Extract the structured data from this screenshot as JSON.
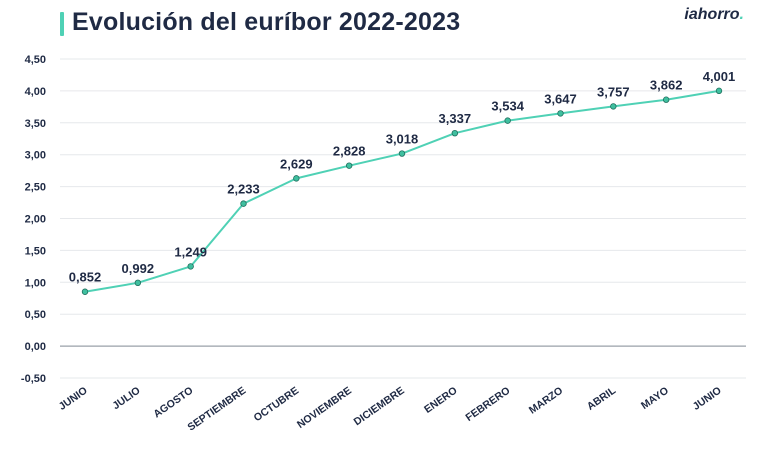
{
  "brand": {
    "name": "iahorro",
    "dot": "."
  },
  "chart_data": {
    "type": "line",
    "title": "Evolución del euríbor 2022-2023",
    "xlabel": "",
    "ylabel": "",
    "categories": [
      "JUNIO",
      "JULIO",
      "AGOSTO",
      "SEPTIEMBRE",
      "OCTUBRE",
      "NOVIEMBRE",
      "DICIEMBRE",
      "ENERO",
      "FEBRERO",
      "MARZO",
      "ABRIL",
      "MAYO",
      "JUNIO"
    ],
    "values": [
      0.852,
      0.992,
      1.249,
      2.233,
      2.629,
      2.828,
      3.018,
      3.337,
      3.534,
      3.647,
      3.757,
      3.862,
      4.001
    ],
    "data_labels": [
      "0,852",
      "0,992",
      "1,249",
      "2,233",
      "2,629",
      "2,828",
      "3,018",
      "3,337",
      "3,534",
      "3,647",
      "3,757",
      "3,862",
      "4,001"
    ],
    "yticks": [
      4.5,
      4.0,
      3.5,
      3.0,
      2.5,
      2.0,
      1.5,
      1.0,
      0.5,
      0.0,
      -0.5
    ],
    "ytick_labels": [
      "4,50",
      "4,00",
      "3,50",
      "3,00",
      "2,50",
      "2,00",
      "1,50",
      "1,00",
      "0,50",
      "0,00",
      "-0,50"
    ],
    "ylim": [
      -0.5,
      4.5
    ],
    "grid": true,
    "line_color": "#4fd1b5",
    "text_color": "#1f2a44"
  }
}
